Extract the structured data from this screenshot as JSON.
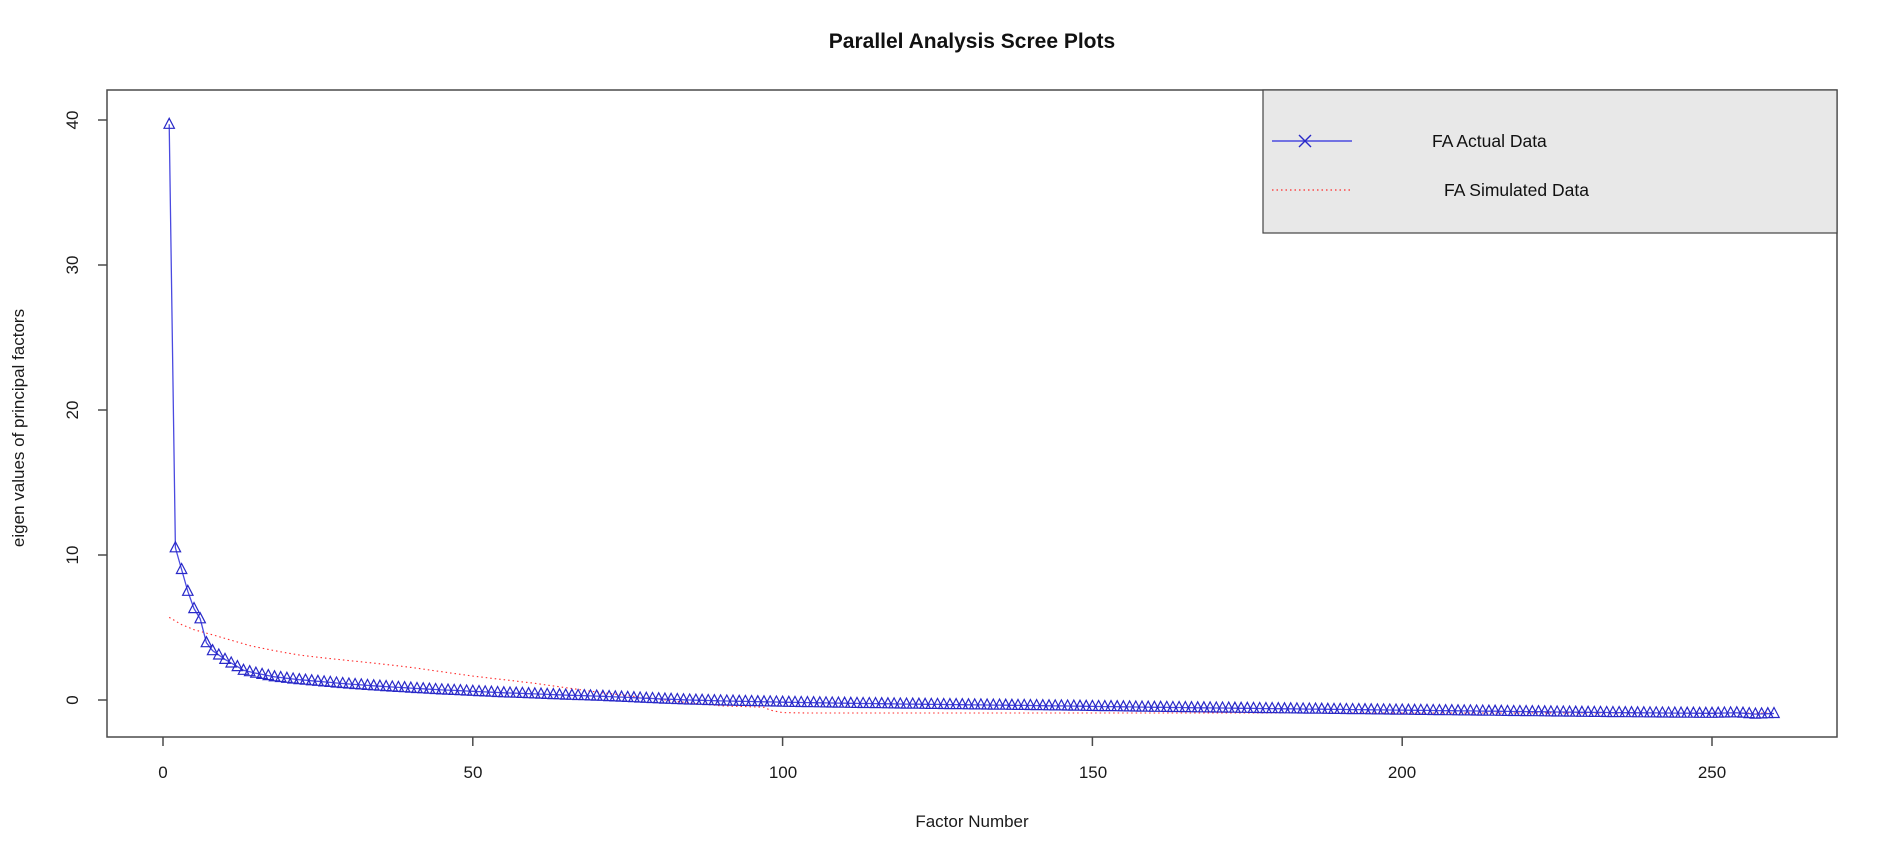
{
  "title": "Parallel Analysis Scree Plots",
  "colors": {
    "actual_line": "#4a4ae0",
    "actual_marker": "#2828c8",
    "simulated_line": "#ff2a2a",
    "legend_text": "#23a223",
    "legend_bg": "#e8e8e8",
    "legend_border": "#444444",
    "axis_box": "#4a4a4a",
    "text": "#111111"
  },
  "chart_data": {
    "type": "line",
    "title": "Parallel Analysis Scree Plots",
    "xlabel": "Factor Number",
    "ylabel": "eigen values of principal factors",
    "x_ticks": [
      0,
      50,
      100,
      150,
      200,
      250
    ],
    "y_ticks": [
      0,
      10,
      20,
      30,
      40
    ],
    "xlim": [
      -9,
      270
    ],
    "ylim": [
      -2.5,
      42
    ],
    "n_factors": 260,
    "grid": false,
    "legend_position": "topright",
    "series": [
      {
        "name": "FA  Actual Data",
        "color": "blue",
        "line_style": "solid",
        "marker": "open-triangle",
        "legend_marker": "x-cross",
        "anchors": [
          [
            1,
            39.7
          ],
          [
            2,
            10.5
          ],
          [
            3,
            9.0
          ],
          [
            4,
            7.5
          ],
          [
            5,
            6.3
          ],
          [
            6,
            5.6
          ],
          [
            7,
            3.95
          ],
          [
            8,
            3.4
          ],
          [
            9,
            3.1
          ],
          [
            10,
            2.8
          ],
          [
            11,
            2.55
          ],
          [
            12,
            2.3
          ],
          [
            13,
            2.05
          ],
          [
            15,
            1.85
          ],
          [
            18,
            1.6
          ],
          [
            22,
            1.4
          ],
          [
            26,
            1.25
          ],
          [
            30,
            1.1
          ],
          [
            35,
            0.95
          ],
          [
            40,
            0.82
          ],
          [
            45,
            0.7
          ],
          [
            50,
            0.6
          ],
          [
            55,
            0.5
          ],
          [
            60,
            0.42
          ],
          [
            65,
            0.34
          ],
          [
            70,
            0.27
          ],
          [
            75,
            0.18
          ],
          [
            80,
            0.08
          ],
          [
            85,
            0.0
          ],
          [
            90,
            -0.06
          ],
          [
            100,
            -0.15
          ],
          [
            110,
            -0.22
          ],
          [
            120,
            -0.28
          ],
          [
            130,
            -0.33
          ],
          [
            140,
            -0.38
          ],
          [
            150,
            -0.44
          ],
          [
            160,
            -0.5
          ],
          [
            170,
            -0.55
          ],
          [
            180,
            -0.6
          ],
          [
            190,
            -0.65
          ],
          [
            200,
            -0.7
          ],
          [
            210,
            -0.75
          ],
          [
            220,
            -0.8
          ],
          [
            230,
            -0.85
          ],
          [
            240,
            -0.89
          ],
          [
            250,
            -0.92
          ],
          [
            254,
            -0.88
          ],
          [
            257,
            -0.97
          ],
          [
            260,
            -0.93
          ]
        ]
      },
      {
        "name": "FA  Simulated Data",
        "color": "red",
        "line_style": "dotted",
        "marker": "none",
        "legend_marker": "dotted-line",
        "anchors": [
          [
            1,
            5.7
          ],
          [
            3,
            5.2
          ],
          [
            5,
            4.85
          ],
          [
            8,
            4.5
          ],
          [
            10,
            4.25
          ],
          [
            14,
            3.75
          ],
          [
            18,
            3.4
          ],
          [
            22,
            3.1
          ],
          [
            26,
            2.9
          ],
          [
            30,
            2.72
          ],
          [
            35,
            2.5
          ],
          [
            40,
            2.25
          ],
          [
            45,
            1.95
          ],
          [
            50,
            1.65
          ],
          [
            55,
            1.4
          ],
          [
            60,
            1.15
          ],
          [
            65,
            0.85
          ],
          [
            70,
            0.55
          ],
          [
            75,
            0.3
          ],
          [
            80,
            0.05
          ],
          [
            85,
            -0.2
          ],
          [
            90,
            -0.4
          ],
          [
            97,
            -0.5
          ],
          [
            98,
            -0.7
          ],
          [
            100,
            -0.87
          ],
          [
            105,
            -0.9
          ],
          [
            260,
            -0.9
          ]
        ]
      }
    ]
  }
}
